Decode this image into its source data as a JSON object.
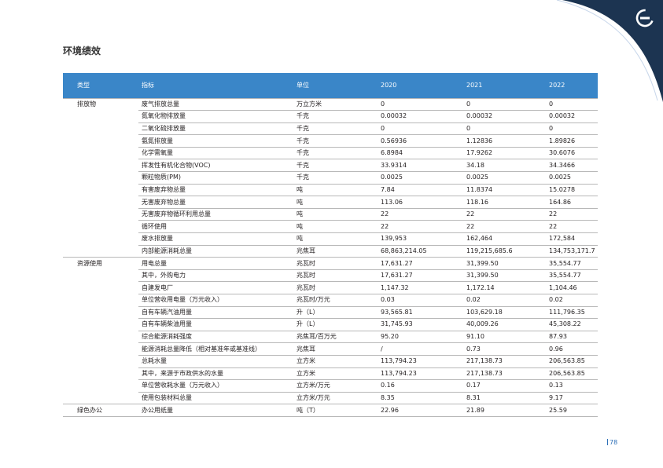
{
  "page": {
    "title": "环境绩效",
    "number": "78"
  },
  "colors": {
    "header_bg": "#3a86c8",
    "corner_navy": "#1c3451",
    "accent_blue": "#2d6fb7"
  },
  "logo": {
    "icon": "company-logo-icon"
  },
  "table": {
    "headers": [
      "类型",
      "指标",
      "单位",
      "2020",
      "2021",
      "2022"
    ],
    "rows": [
      {
        "category": "排放物",
        "indicator": "废气排放总量",
        "unit": "万立方米",
        "y2020": "0",
        "y2021": "0",
        "y2022": "0"
      },
      {
        "category": "",
        "indicator": "氮氧化物排放量",
        "unit": "千克",
        "y2020": "0.00032",
        "y2021": "0.00032",
        "y2022": "0.00032"
      },
      {
        "category": "",
        "indicator": "二氧化硫排放量",
        "unit": "千克",
        "y2020": "0",
        "y2021": "0",
        "y2022": "0"
      },
      {
        "category": "",
        "indicator": "氨氮排放量",
        "unit": "千克",
        "y2020": "0.56936",
        "y2021": "1.12836",
        "y2022": "1.89826"
      },
      {
        "category": "",
        "indicator": "化学需氧量",
        "unit": "千克",
        "y2020": "6.8984",
        "y2021": "17.9262",
        "y2022": "30.6076"
      },
      {
        "category": "",
        "indicator": "挥发性有机化合物(VOC)",
        "unit": "千克",
        "y2020": "33.9314",
        "y2021": "34.18",
        "y2022": "34.3466"
      },
      {
        "category": "",
        "indicator": "颗粒物质(PM)",
        "unit": "千克",
        "y2020": "0.0025",
        "y2021": "0.0025",
        "y2022": "0.0025"
      },
      {
        "category": "",
        "indicator": "有害废弃物总量",
        "unit": "吨",
        "y2020": "7.84",
        "y2021": "11.8374",
        "y2022": "15.0278"
      },
      {
        "category": "",
        "indicator": "无害废弃物总量",
        "unit": "吨",
        "y2020": "113.06",
        "y2021": "118.16",
        "y2022": "164.86"
      },
      {
        "category": "",
        "indicator": "无害废弃物循环利用总量",
        "unit": "吨",
        "y2020": "22",
        "y2021": "22",
        "y2022": "22"
      },
      {
        "category": "",
        "indicator": "循环使用",
        "unit": "吨",
        "y2020": "22",
        "y2021": "22",
        "y2022": "22"
      },
      {
        "category": "",
        "indicator": "废水排放量",
        "unit": "吨",
        "y2020": "139,953",
        "y2021": "162,464",
        "y2022": "172,584"
      },
      {
        "category": "",
        "indicator": "内部能源消耗总量",
        "unit": "兆焦耳",
        "y2020": "68,863,214.05",
        "y2021": "119,215,685.6",
        "y2022": "134,753,171.7"
      },
      {
        "category": "资源使用",
        "indicator": "用电总量",
        "unit": "兆瓦时",
        "y2020": "17,631.27",
        "y2021": "31,399.50",
        "y2022": "35,554.77"
      },
      {
        "category": "",
        "indicator": "其中，外购电力",
        "unit": "兆瓦时",
        "y2020": "17,631.27",
        "y2021": "31,399.50",
        "y2022": "35,554.77"
      },
      {
        "category": "",
        "indicator": "自建发电厂",
        "unit": "兆瓦时",
        "y2020": "1,147.32",
        "y2021": "1,172.14",
        "y2022": "1,104.46"
      },
      {
        "category": "",
        "indicator": "单位营收用电量（万元收入）",
        "unit": "兆瓦时/万元",
        "y2020": "0.03",
        "y2021": "0.02",
        "y2022": "0.02"
      },
      {
        "category": "",
        "indicator": "自有车辆汽油用量",
        "unit": "升（L）",
        "y2020": "93,565.81",
        "y2021": "103,629.18",
        "y2022": "111,796.35"
      },
      {
        "category": "",
        "indicator": "自有车辆柴油用量",
        "unit": "升（L）",
        "y2020": "31,745.93",
        "y2021": "40,009.26",
        "y2022": "45,308.22"
      },
      {
        "category": "",
        "indicator": "综合能源消耗强度",
        "unit": "兆焦耳/百万元",
        "y2020": "95.20",
        "y2021": "91.10",
        "y2022": "87.93"
      },
      {
        "category": "",
        "indicator": "能源消耗总量降低（相对基准年或基准线）",
        "unit": "兆焦耳",
        "y2020": "/",
        "y2021": "0.73",
        "y2022": "0.96"
      },
      {
        "category": "",
        "indicator": "总耗水量",
        "unit": "立方米",
        "y2020": "113,794.23",
        "y2021": "217,138.73",
        "y2022": "206,563.85"
      },
      {
        "category": "",
        "indicator": "其中，来源于市政供水的水量",
        "unit": "立方米",
        "y2020": "113,794.23",
        "y2021": "217,138.73",
        "y2022": "206,563.85"
      },
      {
        "category": "",
        "indicator": "单位营收耗水量（万元收入）",
        "unit": "立方米/万元",
        "y2020": "0.16",
        "y2021": "0.17",
        "y2022": "0.13"
      },
      {
        "category": "",
        "indicator": "使用包装材料总量",
        "unit": "立方米/万元",
        "y2020": "8.35",
        "y2021": "8.31",
        "y2022": "9.17"
      },
      {
        "category": "绿色办公",
        "indicator": "办公用纸量",
        "unit": "吨（T）",
        "y2020": "22.96",
        "y2021": "21.89",
        "y2022": "25.59"
      }
    ]
  }
}
